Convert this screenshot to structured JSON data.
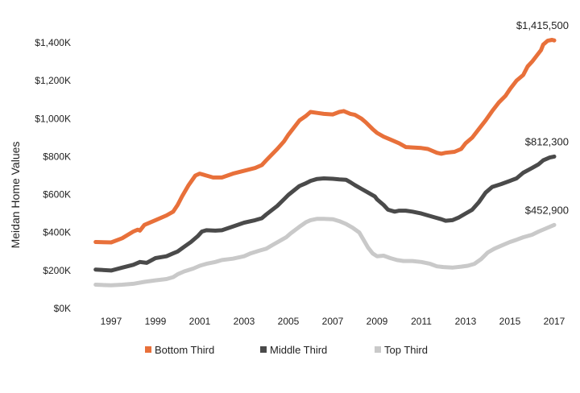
{
  "chart_data": {
    "type": "line",
    "ylabel": "Meidan Home Values",
    "xlim": [
      1996.2,
      2017.0
    ],
    "ylim": [
      0,
      1400
    ],
    "grid": false,
    "legend_position": "bottom",
    "y_ticks": [
      {
        "value": 0,
        "label": "$0K"
      },
      {
        "value": 200,
        "label": "$200K"
      },
      {
        "value": 400,
        "label": "$400K"
      },
      {
        "value": 600,
        "label": "$600K"
      },
      {
        "value": 800,
        "label": "$800K"
      },
      {
        "value": 1000,
        "label": "$1,000K"
      },
      {
        "value": 1200,
        "label": "$1,200K"
      },
      {
        "value": 1400,
        "label": "$1,400K"
      }
    ],
    "x_ticks": [
      {
        "value": 1997,
        "label": "1997"
      },
      {
        "value": 1999,
        "label": "1999"
      },
      {
        "value": 2001,
        "label": "2001"
      },
      {
        "value": 2003,
        "label": "2003"
      },
      {
        "value": 2005,
        "label": "2005"
      },
      {
        "value": 2007,
        "label": "2007"
      },
      {
        "value": 2009,
        "label": "2009"
      },
      {
        "value": 2011,
        "label": "2011"
      },
      {
        "value": 2013,
        "label": "2013"
      },
      {
        "value": 2015,
        "label": "2015"
      },
      {
        "value": 2017,
        "label": "2017"
      }
    ],
    "series": [
      {
        "name": "Bottom Third",
        "color": "#E8703A",
        "end_label": "$1,415,500",
        "points": [
          [
            1996.3,
            350
          ],
          [
            1997.0,
            348
          ],
          [
            1997.5,
            370
          ],
          [
            1998.0,
            405
          ],
          [
            1998.2,
            415
          ],
          [
            1998.3,
            410
          ],
          [
            1998.5,
            440
          ],
          [
            1999.0,
            465
          ],
          [
            1999.5,
            490
          ],
          [
            1999.8,
            510
          ],
          [
            2000.0,
            545
          ],
          [
            2000.2,
            590
          ],
          [
            2000.5,
            650
          ],
          [
            2000.8,
            700
          ],
          [
            2001.0,
            710
          ],
          [
            2001.3,
            700
          ],
          [
            2001.6,
            690
          ],
          [
            2002.0,
            690
          ],
          [
            2002.5,
            710
          ],
          [
            2003.0,
            725
          ],
          [
            2003.5,
            740
          ],
          [
            2003.8,
            755
          ],
          [
            2004.0,
            780
          ],
          [
            2004.5,
            840
          ],
          [
            2004.8,
            880
          ],
          [
            2005.0,
            915
          ],
          [
            2005.5,
            990
          ],
          [
            2005.8,
            1015
          ],
          [
            2006.0,
            1035
          ],
          [
            2006.3,
            1030
          ],
          [
            2006.6,
            1025
          ],
          [
            2007.0,
            1022
          ],
          [
            2007.3,
            1035
          ],
          [
            2007.5,
            1040
          ],
          [
            2007.8,
            1025
          ],
          [
            2008.0,
            1020
          ],
          [
            2008.3,
            1000
          ],
          [
            2008.5,
            980
          ],
          [
            2008.8,
            945
          ],
          [
            2009.0,
            925
          ],
          [
            2009.3,
            905
          ],
          [
            2009.6,
            890
          ],
          [
            2010.0,
            870
          ],
          [
            2010.3,
            850
          ],
          [
            2010.6,
            848
          ],
          [
            2011.0,
            845
          ],
          [
            2011.3,
            840
          ],
          [
            2011.7,
            820
          ],
          [
            2011.9,
            815
          ],
          [
            2012.1,
            820
          ],
          [
            2012.5,
            825
          ],
          [
            2012.8,
            840
          ],
          [
            2013.0,
            870
          ],
          [
            2013.3,
            900
          ],
          [
            2013.6,
            945
          ],
          [
            2013.9,
            990
          ],
          [
            2014.2,
            1040
          ],
          [
            2014.5,
            1085
          ],
          [
            2014.8,
            1120
          ],
          [
            2015.0,
            1155
          ],
          [
            2015.3,
            1200
          ],
          [
            2015.6,
            1230
          ],
          [
            2015.8,
            1275
          ],
          [
            2016.0,
            1300
          ],
          [
            2016.2,
            1330
          ],
          [
            2016.4,
            1360
          ],
          [
            2016.5,
            1390
          ],
          [
            2016.7,
            1410
          ],
          [
            2016.9,
            1415
          ],
          [
            2017.0,
            1412
          ]
        ]
      },
      {
        "name": "Middle Third",
        "color": "#4A4A4A",
        "end_label": "$812,300",
        "points": [
          [
            1996.3,
            205
          ],
          [
            1997.0,
            200
          ],
          [
            1997.5,
            215
          ],
          [
            1998.0,
            230
          ],
          [
            1998.3,
            245
          ],
          [
            1998.6,
            240
          ],
          [
            1999.0,
            265
          ],
          [
            1999.5,
            275
          ],
          [
            1999.8,
            290
          ],
          [
            2000.0,
            300
          ],
          [
            2000.3,
            325
          ],
          [
            2000.6,
            350
          ],
          [
            2000.9,
            380
          ],
          [
            2001.1,
            405
          ],
          [
            2001.3,
            412
          ],
          [
            2001.7,
            410
          ],
          [
            2002.0,
            412
          ],
          [
            2002.5,
            432
          ],
          [
            2003.0,
            452
          ],
          [
            2003.5,
            465
          ],
          [
            2003.8,
            475
          ],
          [
            2004.0,
            495
          ],
          [
            2004.5,
            540
          ],
          [
            2004.8,
            575
          ],
          [
            2005.0,
            598
          ],
          [
            2005.5,
            645
          ],
          [
            2005.8,
            660
          ],
          [
            2006.0,
            672
          ],
          [
            2006.3,
            682
          ],
          [
            2006.6,
            685
          ],
          [
            2007.0,
            683
          ],
          [
            2007.3,
            680
          ],
          [
            2007.6,
            678
          ],
          [
            2007.8,
            665
          ],
          [
            2008.0,
            650
          ],
          [
            2008.3,
            630
          ],
          [
            2008.6,
            610
          ],
          [
            2008.9,
            590
          ],
          [
            2009.0,
            575
          ],
          [
            2009.3,
            545
          ],
          [
            2009.5,
            520
          ],
          [
            2009.8,
            510
          ],
          [
            2010.0,
            515
          ],
          [
            2010.3,
            515
          ],
          [
            2010.6,
            510
          ],
          [
            2011.0,
            500
          ],
          [
            2011.3,
            490
          ],
          [
            2011.6,
            480
          ],
          [
            2011.9,
            470
          ],
          [
            2012.1,
            462
          ],
          [
            2012.4,
            465
          ],
          [
            2012.7,
            480
          ],
          [
            2013.0,
            500
          ],
          [
            2013.3,
            520
          ],
          [
            2013.6,
            560
          ],
          [
            2013.9,
            610
          ],
          [
            2014.2,
            640
          ],
          [
            2014.6,
            655
          ],
          [
            2015.0,
            672
          ],
          [
            2015.3,
            685
          ],
          [
            2015.6,
            715
          ],
          [
            2016.0,
            740
          ],
          [
            2016.3,
            760
          ],
          [
            2016.5,
            780
          ],
          [
            2016.8,
            795
          ],
          [
            2017.0,
            800
          ]
        ]
      },
      {
        "name": "Top Third",
        "color": "#C9C9C9",
        "end_label": "$452,900",
        "points": [
          [
            1996.3,
            125
          ],
          [
            1996.7,
            123
          ],
          [
            1997.0,
            122
          ],
          [
            1997.5,
            125
          ],
          [
            1998.0,
            130
          ],
          [
            1998.5,
            140
          ],
          [
            1999.0,
            148
          ],
          [
            1999.5,
            155
          ],
          [
            1999.8,
            165
          ],
          [
            2000.0,
            180
          ],
          [
            2000.3,
            195
          ],
          [
            2000.7,
            210
          ],
          [
            2001.0,
            225
          ],
          [
            2001.3,
            235
          ],
          [
            2001.7,
            245
          ],
          [
            2002.0,
            255
          ],
          [
            2002.5,
            262
          ],
          [
            2003.0,
            275
          ],
          [
            2003.3,
            290
          ],
          [
            2003.7,
            305
          ],
          [
            2004.0,
            315
          ],
          [
            2004.3,
            335
          ],
          [
            2004.6,
            355
          ],
          [
            2004.9,
            375
          ],
          [
            2005.1,
            395
          ],
          [
            2005.5,
            430
          ],
          [
            2005.8,
            455
          ],
          [
            2006.0,
            465
          ],
          [
            2006.3,
            472
          ],
          [
            2006.6,
            472
          ],
          [
            2007.0,
            470
          ],
          [
            2007.3,
            460
          ],
          [
            2007.6,
            445
          ],
          [
            2007.9,
            425
          ],
          [
            2008.2,
            400
          ],
          [
            2008.4,
            360
          ],
          [
            2008.6,
            320
          ],
          [
            2008.8,
            290
          ],
          [
            2009.0,
            275
          ],
          [
            2009.3,
            278
          ],
          [
            2009.6,
            265
          ],
          [
            2009.9,
            255
          ],
          [
            2010.2,
            250
          ],
          [
            2010.6,
            250
          ],
          [
            2011.0,
            245
          ],
          [
            2011.4,
            235
          ],
          [
            2011.7,
            222
          ],
          [
            2012.0,
            218
          ],
          [
            2012.4,
            215
          ],
          [
            2012.8,
            220
          ],
          [
            2013.1,
            225
          ],
          [
            2013.4,
            235
          ],
          [
            2013.7,
            260
          ],
          [
            2014.0,
            295
          ],
          [
            2014.3,
            315
          ],
          [
            2014.6,
            330
          ],
          [
            2015.0,
            350
          ],
          [
            2015.3,
            362
          ],
          [
            2015.6,
            375
          ],
          [
            2016.0,
            388
          ],
          [
            2016.3,
            405
          ],
          [
            2016.6,
            420
          ],
          [
            2017.0,
            440
          ]
        ]
      }
    ]
  }
}
